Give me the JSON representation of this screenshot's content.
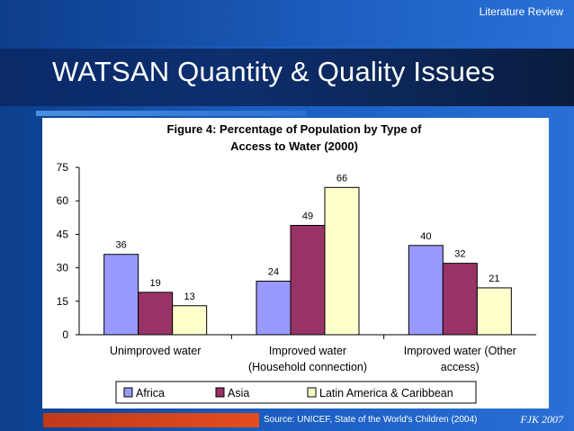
{
  "header": {
    "section_label": "Literature Review",
    "slide_title": "WATSAN Quantity & Quality Issues"
  },
  "colors": {
    "background": "#1a56b8",
    "title_band": "#0b2a66",
    "accent_line": "#3b82dd",
    "footer_bar": "#d9441c",
    "africa": "#9999ff",
    "asia": "#993366",
    "latin_america": "#ffffcc"
  },
  "chart_data": {
    "type": "bar",
    "title_line1": "Figure 4: Percentage of Population by Type of",
    "title_line2": "Access to Water (2000)",
    "categories": [
      [
        "Unimproved water"
      ],
      [
        "Improved water",
        "(Household connection)"
      ],
      [
        "Improved water (Other",
        "access)"
      ]
    ],
    "series": [
      {
        "name": "Africa",
        "color": "#9999ff",
        "values": [
          36,
          24,
          40
        ]
      },
      {
        "name": "Asia",
        "color": "#993366",
        "values": [
          19,
          49,
          32
        ]
      },
      {
        "name": "Latin America & Caribbean",
        "color": "#ffffcc",
        "values": [
          13,
          66,
          21
        ]
      }
    ],
    "ylim": [
      0,
      75
    ],
    "yticks": [
      0,
      15,
      30,
      45,
      60,
      75
    ],
    "grid": false,
    "legend": "bottom"
  },
  "footer": {
    "source": "Source: UNICEF, State of the World's Children (2004)",
    "signature": "FJK 2007"
  }
}
